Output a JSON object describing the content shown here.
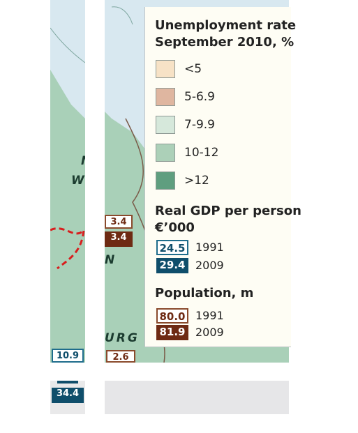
{
  "legend": {
    "unemployment_title_line1": "Unemployment rate",
    "unemployment_title_line2": "September 2010, %",
    "ranges": [
      {
        "label": "<5",
        "color": "#f7e2c6"
      },
      {
        "label": "5-6.9",
        "color": "#dfb6a0"
      },
      {
        "label": "7-9.9",
        "color": "#d6e8db"
      },
      {
        "label": "10-12",
        "color": "#acd0b8"
      },
      {
        "label": ">12",
        "color": "#5f9e7f"
      }
    ],
    "gdp_title_line1": "Real GDP per person",
    "gdp_title_line2": "€’000",
    "gdp_1991_value": "24.5",
    "gdp_1991_year": "1991",
    "gdp_2009_value": "29.4",
    "gdp_2009_year": "2009",
    "population_title": "Population, m",
    "pop_1991_value": "80.0",
    "pop_1991_year": "1991",
    "pop_2009_value": "81.9",
    "pop_2009_year": "2009"
  },
  "map": {
    "label_n": "N",
    "label_w": "W",
    "label_n2": "N",
    "label_urg": "URG",
    "pop_top": "3.4",
    "pop_bottom": "3.4",
    "left_gdp_top": "10.9",
    "left_gdp_bottom": "34.4",
    "right_value_bottom": "2.6"
  },
  "colors": {
    "gdp_outline": "#1f6d8c",
    "gdp_fill": "#0f4e6b",
    "pop_outline": "#8a4a2c",
    "pop_fill": "#6e2a13",
    "water": "#d8e8f0",
    "land": "#a9d0b8",
    "border_red": "#d81e1e"
  }
}
